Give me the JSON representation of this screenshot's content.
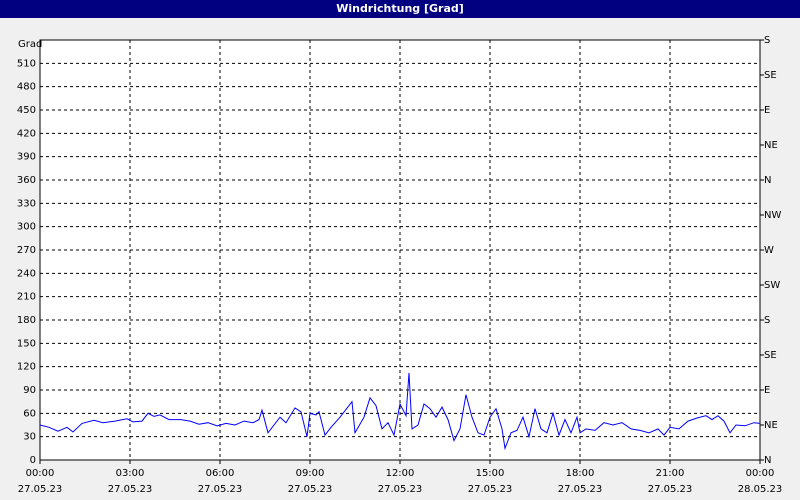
{
  "chart_data": {
    "type": "line",
    "title": "Windrichtung [Grad]",
    "y_label": "Grad",
    "color": "#0000ff",
    "grid": true,
    "xlim": [
      0,
      24
    ],
    "ylim": [
      0,
      540
    ],
    "y2lim": [
      0,
      540
    ],
    "xticks": [
      {
        "value": 0,
        "label": "00:00",
        "date": "27.05.23"
      },
      {
        "value": 3,
        "label": "03:00",
        "date": "27.05.23"
      },
      {
        "value": 6,
        "label": "06:00",
        "date": "27.05.23"
      },
      {
        "value": 9,
        "label": "09:00",
        "date": "27.05.23"
      },
      {
        "value": 12,
        "label": "12:00",
        "date": "27.05.23"
      },
      {
        "value": 15,
        "label": "15:00",
        "date": "27.05.23"
      },
      {
        "value": 18,
        "label": "18:00",
        "date": "27.05.23"
      },
      {
        "value": 21,
        "label": "21:00",
        "date": "27.05.23"
      },
      {
        "value": 24,
        "label": "00:00",
        "date": "28.05.23"
      }
    ],
    "yticks": [
      0,
      30,
      60,
      90,
      120,
      150,
      180,
      210,
      240,
      270,
      300,
      330,
      360,
      390,
      420,
      450,
      480,
      510
    ],
    "y2ticks": [
      {
        "value": 0,
        "label": "N"
      },
      {
        "value": 45,
        "label": "NE"
      },
      {
        "value": 90,
        "label": "E"
      },
      {
        "value": 135,
        "label": "SE"
      },
      {
        "value": 180,
        "label": "S"
      },
      {
        "value": 225,
        "label": "SW"
      },
      {
        "value": 270,
        "label": "W"
      },
      {
        "value": 315,
        "label": "NW"
      },
      {
        "value": 360,
        "label": "N"
      },
      {
        "value": 405,
        "label": "NE"
      },
      {
        "value": 450,
        "label": "E"
      },
      {
        "value": 495,
        "label": "SE"
      },
      {
        "value": 540,
        "label": "S"
      }
    ],
    "x": [
      0,
      0.3,
      0.6,
      0.9,
      1.1,
      1.4,
      1.8,
      2.1,
      2.5,
      2.9,
      3.1,
      3.4,
      3.6,
      3.8,
      4,
      4.3,
      4.7,
      5,
      5.3,
      5.6,
      5.9,
      6.2,
      6.5,
      6.8,
      7.1,
      7.3,
      7.4,
      7.6,
      8,
      8.2,
      8.5,
      8.7,
      8.9,
      9,
      9.2,
      9.3,
      9.5,
      9.7,
      10,
      10.4,
      10.5,
      10.8,
      11,
      11.2,
      11.4,
      11.6,
      11.8,
      12,
      12.2,
      12.3,
      12.4,
      12.6,
      12.8,
      13,
      13.2,
      13.4,
      13.6,
      13.8,
      14,
      14.2,
      14.4,
      14.6,
      14.8,
      15,
      15.2,
      15.4,
      15.5,
      15.7,
      15.9,
      16.1,
      16.3,
      16.5,
      16.7,
      16.9,
      17.1,
      17.3,
      17.5,
      17.7,
      17.9,
      18,
      18.2,
      18.5,
      18.8,
      19.1,
      19.4,
      19.7,
      20,
      20.3,
      20.6,
      20.8,
      21,
      21.3,
      21.6,
      21.9,
      22.2,
      22.4,
      22.6,
      22.8,
      23,
      23.2,
      23.5,
      23.8,
      24
    ],
    "values": [
      45,
      42,
      37,
      42,
      36,
      47,
      51,
      48,
      50,
      53,
      49,
      50,
      60,
      56,
      58,
      52,
      52,
      50,
      46,
      48,
      44,
      47,
      45,
      50,
      48,
      52,
      64,
      35,
      55,
      48,
      67,
      62,
      30,
      60,
      58,
      62,
      32,
      42,
      55,
      75,
      35,
      55,
      80,
      70,
      40,
      48,
      32,
      72,
      57,
      112,
      40,
      45,
      72,
      66,
      55,
      68,
      52,
      25,
      40,
      84,
      55,
      35,
      32,
      55,
      66,
      40,
      15,
      35,
      38,
      55,
      30,
      66,
      40,
      35,
      60,
      32,
      52,
      35,
      55,
      35,
      40,
      38,
      48,
      45,
      48,
      40,
      38,
      35,
      40,
      32,
      42,
      40,
      50,
      54,
      57,
      52,
      57,
      50,
      35,
      45,
      44,
      48,
      47
    ]
  }
}
